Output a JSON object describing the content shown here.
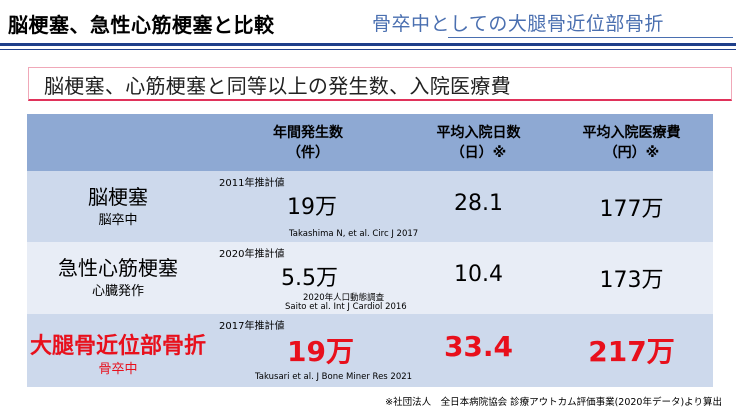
{
  "header": {
    "title": "脳梗塞、急性心筋梗塞と比較",
    "subtitle": "骨卒中としての大腿骨近位部骨折"
  },
  "banner": {
    "text": "脳梗塞、心筋梗塞と同等以上の発生数、入院医療費"
  },
  "table": {
    "headers": [
      {
        "line1": "年間発生数",
        "line2": "（件）"
      },
      {
        "line1": "平均入院日数",
        "line2": "（日）※"
      },
      {
        "line1": "平均入院医療費",
        "line2": "（円）※"
      }
    ],
    "rows": [
      {
        "name": "脳梗塞",
        "sub": "脳卒中",
        "estimate_label": "2011年推計値",
        "count": "19万",
        "citation1": "Takashima N, et al. Circ J 2017",
        "citation2": "",
        "days": "28.1",
        "cost": "177万"
      },
      {
        "name": "急性心筋梗塞",
        "sub": "心臓発作",
        "estimate_label": "2020年推計値",
        "count": "5.5万",
        "citation1": "2020年人口動態調査",
        "citation2": "Saito et al. Int J Cardiol 2016",
        "days": "10.4",
        "cost": "173万"
      },
      {
        "name": "大腿骨近位部骨折",
        "sub": "骨卒中",
        "estimate_label": "2017年推計値",
        "count": "19万",
        "citation1": "Takusari et al. J Bone Miner Res 2021",
        "citation2": "",
        "days": "33.4",
        "cost": "217万"
      }
    ]
  },
  "footnote": "※社団法人　全日本病院協会 診療アウトカム評価事業(2020年データ)より算出",
  "colors": {
    "accent_blue": "#1f3f8a",
    "subtitle_blue": "#4a6fb0",
    "highlight_red": "#e8101c",
    "header_row": "#8ea9d3",
    "row_dark": "#cdd9ec",
    "row_light": "#e8edf6"
  }
}
